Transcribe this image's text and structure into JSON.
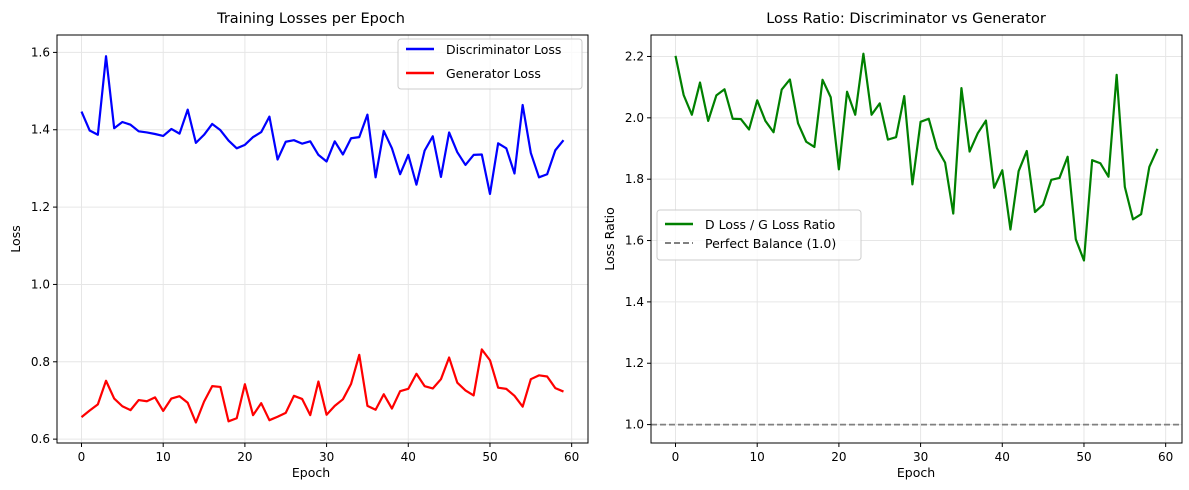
{
  "chart_data": [
    {
      "type": "line",
      "title": "Training Losses per Epoch",
      "xlabel": "Epoch",
      "ylabel": "Loss",
      "xlim": [
        -3,
        62
      ],
      "ylim": [
        0.59,
        1.645
      ],
      "xticks": [
        0,
        10,
        20,
        30,
        40,
        50,
        60
      ],
      "yticks": [
        0.6,
        0.8,
        1.0,
        1.2,
        1.4,
        1.6
      ],
      "grid": true,
      "legend_position": "upper right",
      "x": [
        0,
        1,
        2,
        3,
        4,
        5,
        6,
        7,
        8,
        9,
        10,
        11,
        12,
        13,
        14,
        15,
        16,
        17,
        18,
        19,
        20,
        21,
        22,
        23,
        24,
        25,
        26,
        27,
        28,
        29,
        30,
        31,
        32,
        33,
        34,
        35,
        36,
        37,
        38,
        39,
        40,
        41,
        42,
        43,
        44,
        45,
        46,
        47,
        48,
        49,
        50,
        51,
        52,
        53,
        54,
        55,
        56,
        57,
        58,
        59
      ],
      "series": [
        {
          "name": "Discriminator Loss",
          "color": "#0000ff",
          "values": [
            1.447,
            1.398,
            1.387,
            1.59,
            1.404,
            1.42,
            1.413,
            1.396,
            1.393,
            1.389,
            1.384,
            1.402,
            1.39,
            1.452,
            1.366,
            1.387,
            1.415,
            1.399,
            1.372,
            1.352,
            1.361,
            1.381,
            1.394,
            1.434,
            1.323,
            1.369,
            1.373,
            1.364,
            1.37,
            1.335,
            1.318,
            1.37,
            1.336,
            1.378,
            1.381,
            1.439,
            1.277,
            1.397,
            1.352,
            1.285,
            1.335,
            1.258,
            1.346,
            1.383,
            1.278,
            1.393,
            1.342,
            1.309,
            1.335,
            1.336,
            1.234,
            1.365,
            1.352,
            1.287,
            1.464,
            1.34,
            1.277,
            1.285,
            1.347,
            1.373
          ]
        },
        {
          "name": "Generator Loss",
          "color": "#ff0000",
          "values": [
            0.657,
            0.674,
            0.69,
            0.751,
            0.705,
            0.685,
            0.675,
            0.701,
            0.698,
            0.708,
            0.673,
            0.705,
            0.711,
            0.694,
            0.643,
            0.697,
            0.737,
            0.735,
            0.646,
            0.654,
            0.742,
            0.662,
            0.693,
            0.649,
            0.658,
            0.668,
            0.712,
            0.704,
            0.662,
            0.749,
            0.663,
            0.686,
            0.703,
            0.743,
            0.818,
            0.686,
            0.676,
            0.716,
            0.679,
            0.724,
            0.73,
            0.769,
            0.737,
            0.731,
            0.755,
            0.811,
            0.746,
            0.726,
            0.713,
            0.832,
            0.804,
            0.733,
            0.73,
            0.712,
            0.684,
            0.755,
            0.765,
            0.762,
            0.732,
            0.723
          ]
        }
      ]
    },
    {
      "type": "line",
      "title": "Loss Ratio: Discriminator vs Generator",
      "xlabel": "Epoch",
      "ylabel": "Loss Ratio",
      "xlim": [
        -3,
        62
      ],
      "ylim": [
        0.94,
        2.27
      ],
      "xticks": [
        0,
        10,
        20,
        30,
        40,
        50,
        60
      ],
      "yticks": [
        1.0,
        1.2,
        1.4,
        1.6,
        1.8,
        2.0,
        2.2
      ],
      "grid": true,
      "legend_position": "center left",
      "x": [
        0,
        1,
        2,
        3,
        4,
        5,
        6,
        7,
        8,
        9,
        10,
        11,
        12,
        13,
        14,
        15,
        16,
        17,
        18,
        19,
        20,
        21,
        22,
        23,
        24,
        25,
        26,
        27,
        28,
        29,
        30,
        31,
        32,
        33,
        34,
        35,
        36,
        37,
        38,
        39,
        40,
        41,
        42,
        43,
        44,
        45,
        46,
        47,
        48,
        49,
        50,
        51,
        52,
        53,
        54,
        55,
        56,
        57,
        58,
        59
      ],
      "series": [
        {
          "name": "D Loss / G Loss Ratio",
          "color": "#008000",
          "values": [
            2.202,
            2.074,
            2.01,
            2.115,
            1.99,
            2.073,
            2.093,
            1.997,
            1.996,
            1.962,
            2.057,
            1.99,
            1.953,
            2.092,
            2.125,
            1.982,
            1.922,
            1.905,
            2.124,
            2.067,
            1.832,
            2.085,
            2.01,
            2.209,
            2.01,
            2.047,
            1.929,
            1.937,
            2.071,
            1.783,
            1.987,
            1.997,
            1.901,
            1.854,
            1.688,
            2.097,
            1.89,
            1.95,
            1.991,
            1.772,
            1.829,
            1.636,
            1.826,
            1.892,
            1.693,
            1.717,
            1.798,
            1.804,
            1.873,
            1.604,
            1.535,
            1.862,
            1.852,
            1.808,
            2.14,
            1.775,
            1.669,
            1.686,
            1.84,
            1.899
          ]
        },
        {
          "name": "Perfect Balance (1.0)",
          "color": "#808080",
          "style": "dashed",
          "constant": 1.0
        }
      ]
    }
  ]
}
